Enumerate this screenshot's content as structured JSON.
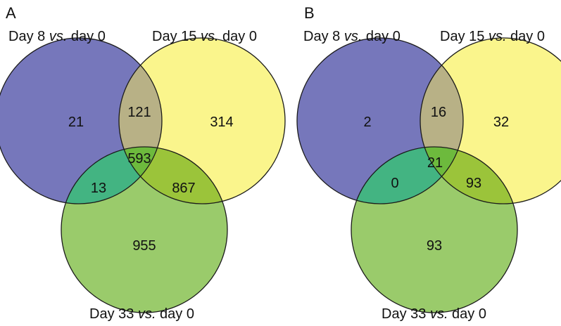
{
  "colors": {
    "set1": "#7677bb",
    "set2": "#faf58c",
    "set3": "#9acb6b",
    "set1_set2": "#b8b186",
    "set1_set3": "#43b482",
    "set2_set3": "#9bc43a",
    "all": "#6dba3d"
  },
  "panels": [
    {
      "letter": "A",
      "labels": {
        "set1": {
          "prefix": "Day 8 ",
          "vs": "vs.",
          "suffix": " day 0"
        },
        "set2": {
          "prefix": "Day 15 ",
          "vs": "vs.",
          "suffix": " day 0"
        },
        "set3": {
          "prefix": "Day 33 ",
          "vs": "vs.",
          "suffix": " day 0"
        }
      },
      "regions": {
        "only1": "21",
        "only2": "314",
        "only3": "955",
        "s12": "121",
        "s13": "13",
        "s23": "867",
        "all": "593"
      }
    },
    {
      "letter": "B",
      "labels": {
        "set1": {
          "prefix": "Day 8 ",
          "vs": "vs.",
          "suffix": " day 0"
        },
        "set2": {
          "prefix": "Day 15 ",
          "vs": "vs.",
          "suffix": " day 0"
        },
        "set3": {
          "prefix": "Day 33 ",
          "vs": "vs.",
          "suffix": " day 0"
        }
      },
      "regions": {
        "only1": "2",
        "only2": "32",
        "only3": "93",
        "s12": "16",
        "s13": "0",
        "s23": "93",
        "all": "21"
      }
    }
  ]
}
